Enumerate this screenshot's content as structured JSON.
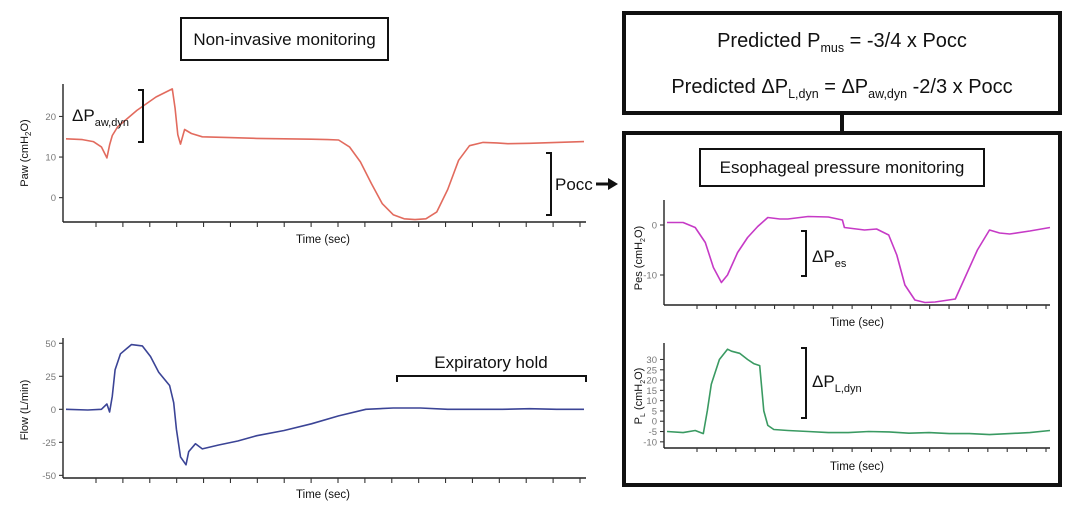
{
  "colors": {
    "paw": "#e26b5e",
    "flow": "#3b4496",
    "pes": "#c63ac6",
    "pl": "#3a9a62"
  },
  "left_panel": {
    "title": "Non-invasive monitoring",
    "pocc_label": "Pocc",
    "expiratory_hold_label": "Expiratory hold",
    "delta_paw": {
      "delta": "ΔP",
      "sub": "aw,dyn"
    }
  },
  "formulas": {
    "line1": {
      "lead": "Predicted P",
      "sub": "mus",
      "tail": " = -3/4 x Pocc"
    },
    "line2": {
      "lead": "Predicted ΔP",
      "sub1": "L,dyn",
      "mid": " = ΔP",
      "sub2": "aw,dyn",
      "tail": " -2/3 x Pocc"
    }
  },
  "right_panel": {
    "title": "Esophageal pressure monitoring",
    "delta_pes": {
      "delta": "ΔP",
      "sub": "es"
    },
    "delta_pl": {
      "delta": "ΔP",
      "sub": "L,dyn"
    }
  },
  "chart_data": [
    {
      "id": "paw",
      "type": "line",
      "title": "",
      "xlabel": "Time (sec)",
      "ylabel": "Paw (cmH2O)",
      "ylim": [
        -6,
        28
      ],
      "yticks": [
        0,
        10,
        20
      ],
      "ytick_labels": [
        "0",
        "10",
        "20"
      ],
      "xticks": 19,
      "x": [
        0,
        0.6,
        1.0,
        1.3,
        1.5,
        1.6,
        1.7,
        1.9,
        2.6,
        3.3,
        3.9,
        4.0,
        4.1,
        4.2,
        4.35,
        4.6,
        5.0,
        6.0,
        7.0,
        8.0,
        9.0,
        9.6,
        10.0,
        10.4,
        10.8,
        11.2,
        11.6,
        12.0,
        12.4,
        12.8,
        13.2,
        13.6,
        14.0,
        14.4,
        14.8,
        15.3,
        15.8,
        16.2,
        17.0,
        18.0,
        19.0
      ],
      "series": [
        {
          "name": "Paw",
          "values": [
            14.5,
            14.3,
            13.8,
            12.5,
            9.8,
            13,
            15.3,
            17.5,
            21.5,
            24.8,
            26.8,
            22,
            15.5,
            13.2,
            16.8,
            15.8,
            15,
            14.8,
            14.6,
            14.5,
            14.4,
            14.3,
            14.2,
            12.5,
            8.8,
            3.5,
            -1.5,
            -4.2,
            -5.2,
            -5.4,
            -5.2,
            -3.5,
            2,
            9.2,
            12.8,
            13.6,
            13.5,
            13.3,
            13.4,
            13.6,
            13.8
          ]
        }
      ]
    },
    {
      "id": "flow",
      "type": "line",
      "title": "",
      "xlabel": "Time (sec)",
      "ylabel": "Flow (L/min)",
      "ylim": [
        -52,
        54
      ],
      "yticks": [
        -50,
        -25,
        0,
        25,
        50
      ],
      "ytick_labels": [
        "-50",
        "-25",
        "0",
        "25",
        "50"
      ],
      "xticks": 19,
      "x": [
        0,
        0.8,
        1.3,
        1.5,
        1.6,
        1.7,
        1.8,
        2.0,
        2.4,
        2.8,
        3.1,
        3.4,
        3.8,
        3.95,
        4.05,
        4.2,
        4.4,
        4.5,
        4.75,
        5.0,
        5.6,
        6.3,
        7.0,
        8.0,
        9.0,
        10.0,
        11.0,
        12.0,
        13.0,
        14.0,
        15.0,
        16.0,
        17.0,
        18.0,
        19.0
      ],
      "series": [
        {
          "name": "Flow",
          "values": [
            0,
            -0.5,
            0,
            4,
            -2,
            10,
            30,
            42,
            49,
            48,
            40,
            28,
            18,
            5,
            -15,
            -36,
            -42,
            -32,
            -26,
            -30,
            -27,
            -24,
            -20,
            -16,
            -11,
            -5,
            0,
            1,
            1,
            0,
            0,
            0,
            0.5,
            0,
            0
          ]
        }
      ]
    },
    {
      "id": "pes",
      "type": "line",
      "title": "",
      "xlabel": "Time (sec)",
      "ylabel": "Pes (cmH2O)",
      "ylim": [
        -16,
        5
      ],
      "yticks": [
        -10,
        0
      ],
      "ytick_labels": [
        "-10",
        "0"
      ],
      "xticks": 19,
      "x": [
        0,
        0.8,
        1.4,
        1.9,
        2.3,
        2.7,
        3.0,
        3.5,
        4.0,
        4.5,
        5.0,
        5.6,
        6.0,
        7.0,
        8.0,
        8.7,
        8.8,
        9.0,
        9.8,
        10.4,
        11.0,
        11.4,
        11.8,
        12.3,
        12.8,
        13.3,
        14.3,
        15.4,
        16.0,
        16.5,
        17.0,
        18.0,
        19.0
      ],
      "series": [
        {
          "name": "Pes",
          "values": [
            0.5,
            0.5,
            -0.5,
            -3.5,
            -8.5,
            -11.5,
            -10,
            -5.5,
            -2.5,
            -0.3,
            1.5,
            1.2,
            1.2,
            1.7,
            1.6,
            1,
            -0.5,
            -0.6,
            -1,
            -0.8,
            -2,
            -6,
            -12,
            -15,
            -15.5,
            -15.4,
            -14.8,
            -5,
            -1,
            -1.6,
            -1.8,
            -1.2,
            -0.5
          ]
        }
      ]
    },
    {
      "id": "pl",
      "type": "line",
      "title": "",
      "xlabel": "Time (sec)",
      "ylabel": "PL (cmH2O)",
      "ylim": [
        -13,
        38
      ],
      "yticks": [
        -10,
        -5,
        0,
        5,
        10,
        15,
        20,
        25,
        30
      ],
      "ytick_labels": [
        "-10",
        "-5",
        "0",
        "5",
        "10",
        "15",
        "20",
        "25",
        "30"
      ],
      "xticks": 19,
      "x": [
        0,
        0.8,
        1.4,
        1.8,
        2.0,
        2.2,
        2.6,
        3.0,
        3.2,
        3.6,
        4.0,
        4.3,
        4.6,
        4.8,
        5.0,
        5.3,
        6.0,
        7.0,
        8.0,
        9.0,
        10.0,
        11.0,
        12.0,
        13.0,
        14.0,
        15.0,
        16.0,
        17.0,
        18.0,
        19.0
      ],
      "series": [
        {
          "name": "PL",
          "values": [
            -5,
            -5.5,
            -4.5,
            -6,
            5,
            18,
            30,
            35,
            34,
            33,
            30,
            28,
            27,
            5,
            -2,
            -4,
            -4.5,
            -5,
            -5.5,
            -5.5,
            -5,
            -5.2,
            -5.8,
            -5.5,
            -6,
            -6,
            -6.5,
            -6,
            -5.5,
            -4.5
          ]
        }
      ]
    }
  ]
}
